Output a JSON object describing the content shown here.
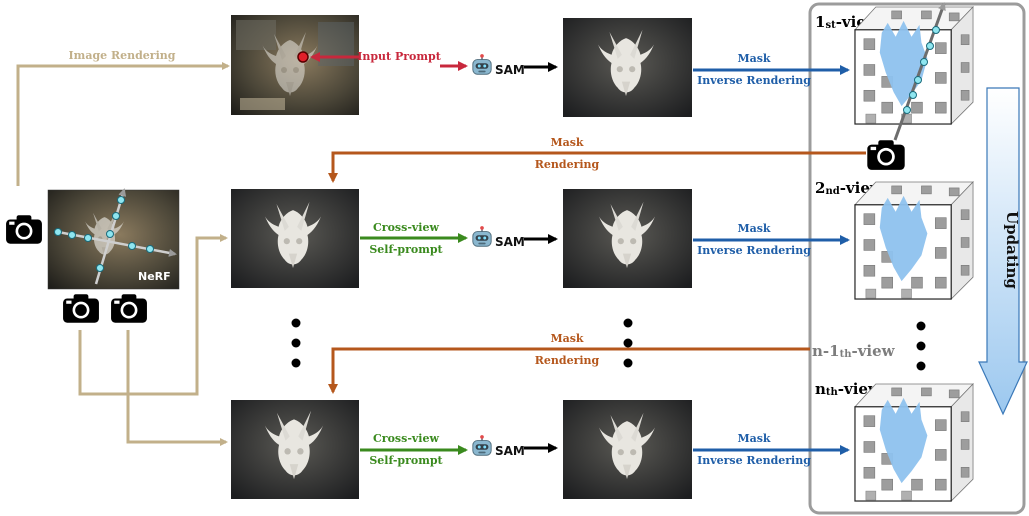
{
  "labels": {
    "image_rendering": "Image Rendering",
    "input_prompt": "Input Prompt",
    "mask": "Mask",
    "inverse_rendering": "Inverse Rendering",
    "rendering": "Rendering",
    "cross_view": "Cross-view",
    "self_prompt": "Self-prompt",
    "sam": "SAM",
    "nerf": "NeRF",
    "updating": "Updating"
  },
  "views": [
    {
      "prefix": "1",
      "suffix": "st",
      "tail": "-view"
    },
    {
      "prefix": "2",
      "suffix": "nd",
      "tail": "-view"
    },
    {
      "prefix": "n-1",
      "suffix": "th",
      "tail": "-view"
    },
    {
      "prefix": "n",
      "suffix": "th",
      "tail": "-view"
    }
  ],
  "colors": {
    "tan": "#c2b08a",
    "red": "#c8283c",
    "blue": "#1f5ea8",
    "orange": "#b5571c",
    "green": "#3a8a1e",
    "mask_blue": "#8ec2ee"
  }
}
